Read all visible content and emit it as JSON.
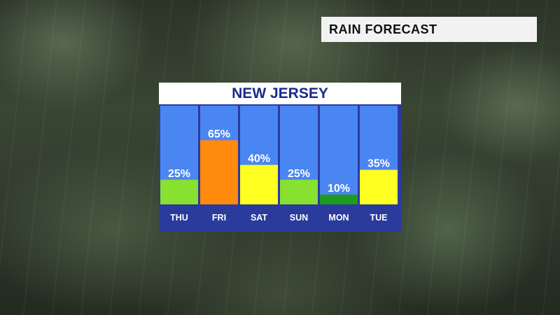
{
  "header": {
    "topic": "RAIN FORECAST"
  },
  "chart_data": {
    "type": "bar",
    "title": "NEW JERSEY",
    "categories": [
      "THU",
      "FRI",
      "SAT",
      "SUN",
      "MON",
      "TUE"
    ],
    "values": [
      25,
      65,
      40,
      25,
      10,
      35
    ],
    "value_suffix": "%",
    "ylim": [
      0,
      100
    ],
    "grid": false,
    "colors": {
      "background_column": "#4a86f2",
      "label_strip": "#2a3b9c",
      "panel": "#2b3aa0",
      "bars": [
        "#88e030",
        "#ff8a0d",
        "#ffff22",
        "#88e030",
        "#1e9a1e",
        "#ffff22"
      ]
    }
  }
}
